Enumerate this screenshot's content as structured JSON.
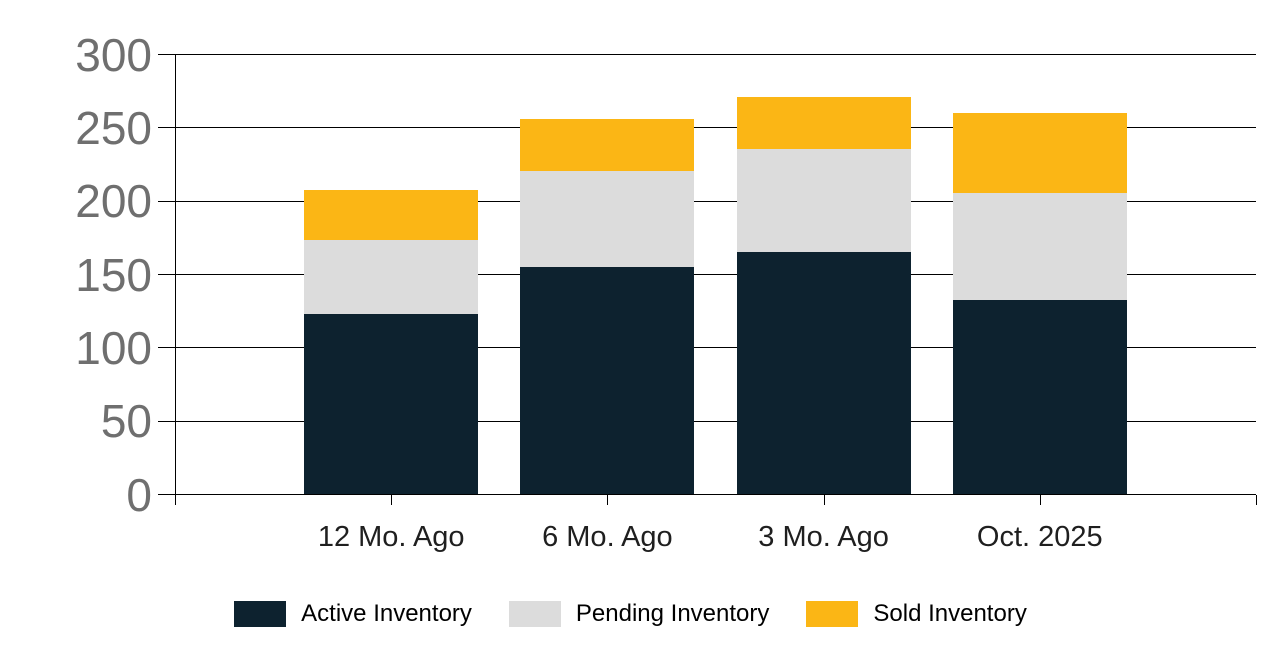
{
  "chart_data": {
    "type": "bar",
    "variant": "stacked-column",
    "categories": [
      "12 Mo. Ago",
      "6 Mo. Ago",
      "3 Mo. Ago",
      "Oct. 2025"
    ],
    "series": [
      {
        "name": "Active Inventory",
        "color": "#0D222F",
        "values": [
          123,
          155,
          165,
          132
        ]
      },
      {
        "name": "Pending Inventory",
        "color": "#DCDCDC",
        "values": [
          50,
          65,
          70,
          73
        ]
      },
      {
        "name": "Sold Inventory",
        "color": "#FBB615",
        "values": [
          34,
          36,
          36,
          55
        ]
      }
    ],
    "stack_totals": [
      207,
      256,
      271,
      260
    ],
    "ylim": [
      0,
      300
    ],
    "yticks": [
      0,
      50,
      100,
      150,
      200,
      250,
      300
    ],
    "y_tick_labels": [
      "0",
      "50",
      "100",
      "150",
      "200",
      "250",
      "300"
    ],
    "grid": true,
    "legend_position": "bottom",
    "colors": {
      "axis": "#000000",
      "gridline": "#000000",
      "y_tick_label_text": "#6F6F6F",
      "x_tick_label_text": "#1F1F1F",
      "legend_text": "#000000",
      "background": "#FFFFFF"
    }
  }
}
